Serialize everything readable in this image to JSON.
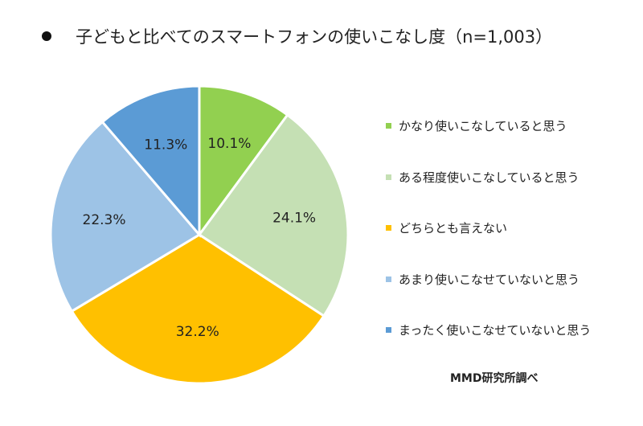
{
  "title": "子どもと比べてのスマートフォンの使いこなし度（n=1,003）",
  "source": "MMD研究所調べ",
  "chart_data": {
    "type": "pie",
    "start_angle": "12 o'clock",
    "direction": "clockwise",
    "slices": [
      {
        "label": "かなり使いこなしていると思う",
        "value": 10.1,
        "value_label": "10.1%",
        "color": "#92d050"
      },
      {
        "label": "ある程度使いこなしていると思う",
        "value": 24.1,
        "value_label": "24.1%",
        "color": "#c5e0b4"
      },
      {
        "label": "どちらとも言えない",
        "value": 32.2,
        "value_label": "32.2%",
        "color": "#ffc000"
      },
      {
        "label": "あまり使いこなせていないと思う",
        "value": 22.3,
        "value_label": "22.3%",
        "color": "#9dc3e6"
      },
      {
        "label": "まったく使いこなせていないと思う",
        "value": 11.3,
        "value_label": "11.3%",
        "color": "#5b9bd5"
      }
    ],
    "legend_position": "right"
  }
}
